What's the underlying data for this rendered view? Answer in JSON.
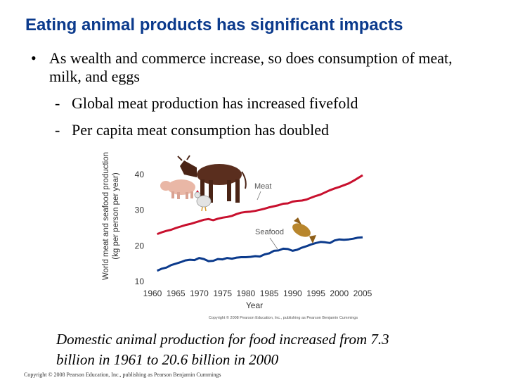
{
  "slide": {
    "title": "Eating animal products has significant impacts",
    "bullet": "As wealth and commerce increase, so does consumption of meat, milk, and eggs",
    "bullet_symbol": "•",
    "subbullets": [
      "Global meat production has increased fivefold",
      "Per capita meat consumption has doubled"
    ],
    "dash_symbol": "-",
    "caption_line1": "Domestic animal production for food increased from 7.3",
    "caption_line2": "billion in 1961 to 20.6 billion in 2000",
    "footer": "Copyright © 2008 Pearson Education, Inc., publishing as Pearson Benjamin Cummings"
  },
  "chart_data": {
    "type": "line",
    "ylabel_line1": "World meat and seafood production",
    "ylabel_line2": "(kg per person per year)",
    "xlabel": "Year",
    "xlim": [
      1960,
      2005
    ],
    "ylim": [
      10,
      40
    ],
    "xticks": [
      "1960",
      "1965",
      "1970",
      "1975",
      "1980",
      "1985",
      "1990",
      "1995",
      "2000",
      "2005"
    ],
    "yticks": [
      "10",
      "20",
      "30",
      "40"
    ],
    "copyright": "Copyright © 2008 Pearson Education, Inc., publishing as Pearson Benjamin Cummings",
    "series": [
      {
        "name": "Meat",
        "color": "#c8102e",
        "x": [
          1961,
          1962,
          1963,
          1964,
          1965,
          1966,
          1967,
          1968,
          1969,
          1970,
          1971,
          1972,
          1973,
          1974,
          1975,
          1976,
          1977,
          1978,
          1979,
          1980,
          1981,
          1982,
          1983,
          1984,
          1985,
          1986,
          1987,
          1988,
          1989,
          1990,
          1991,
          1992,
          1993,
          1994,
          1995,
          1996,
          1997,
          1998,
          1999,
          2000,
          2001,
          2002,
          2003,
          2004,
          2005
        ],
        "values": [
          23.3,
          23.8,
          24.2,
          24.5,
          25.0,
          25.4,
          25.8,
          26.1,
          26.5,
          26.9,
          27.3,
          27.5,
          27.2,
          27.6,
          27.9,
          28.1,
          28.4,
          28.9,
          29.3,
          29.5,
          29.6,
          29.8,
          30.1,
          30.4,
          30.8,
          31.1,
          31.4,
          31.8,
          31.9,
          32.4,
          32.6,
          32.7,
          33.0,
          33.5,
          34.0,
          34.4,
          35.0,
          35.6,
          36.1,
          36.5,
          37.0,
          37.5,
          38.2,
          39.0,
          39.8
        ]
      },
      {
        "name": "Seafood",
        "color": "#0b3a8c",
        "x": [
          1961,
          1962,
          1963,
          1964,
          1965,
          1966,
          1967,
          1968,
          1969,
          1970,
          1971,
          1972,
          1973,
          1974,
          1975,
          1976,
          1977,
          1978,
          1979,
          1980,
          1981,
          1982,
          1983,
          1984,
          1985,
          1986,
          1987,
          1988,
          1989,
          1990,
          1991,
          1992,
          1993,
          1994,
          1995,
          1996,
          1997,
          1998,
          1999,
          2000,
          2001,
          2002,
          2003,
          2004,
          2005
        ],
        "values": [
          13.0,
          13.6,
          13.9,
          14.6,
          15.0,
          15.4,
          15.9,
          16.1,
          16.0,
          16.6,
          16.3,
          15.7,
          15.8,
          16.3,
          16.2,
          16.6,
          16.4,
          16.7,
          16.8,
          16.8,
          16.9,
          17.1,
          17.0,
          17.6,
          17.9,
          18.6,
          18.7,
          19.2,
          19.1,
          18.6,
          18.9,
          19.5,
          19.9,
          20.4,
          20.8,
          21.1,
          21.0,
          20.8,
          21.5,
          21.8,
          21.7,
          21.8,
          22.0,
          22.3,
          22.4
        ]
      }
    ],
    "annotations": [
      "Meat",
      "Seafood"
    ],
    "illustrations": [
      "cow-icon",
      "pig-icon",
      "chicken-icon",
      "fish-icon"
    ]
  }
}
